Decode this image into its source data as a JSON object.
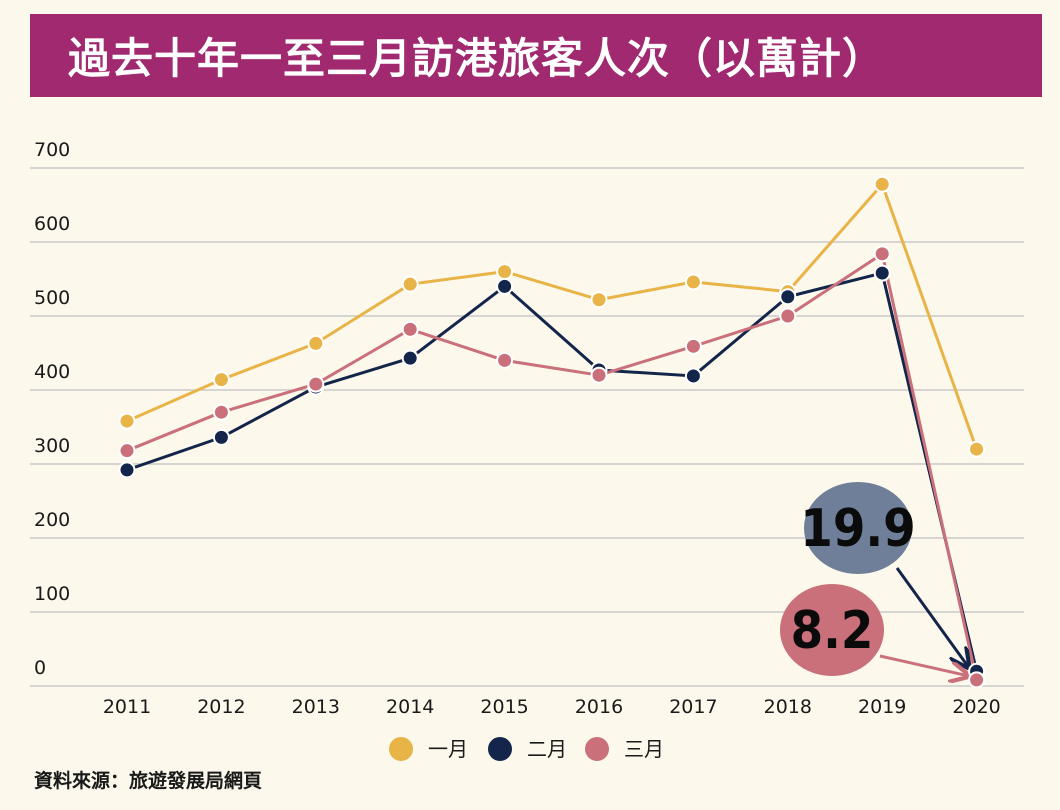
{
  "header": {
    "title": "過去十年一至三月訪港旅客人次（以萬計）"
  },
  "source": {
    "text": "資料來源：旅遊發展局網頁"
  },
  "callouts": [
    {
      "label": "19.9",
      "series_index": 1,
      "color": "#6f7f99"
    },
    {
      "label": "8.2",
      "series_index": 2,
      "color": "#c9707b"
    }
  ],
  "chart_data": {
    "type": "line",
    "title": "過去十年一至三月訪港旅客人次（以萬計）",
    "xlabel": "",
    "ylabel": "",
    "x": [
      "2011",
      "2012",
      "2013",
      "2014",
      "2015",
      "2016",
      "2017",
      "2018",
      "2019",
      "2020"
    ],
    "ylim": [
      0,
      700
    ],
    "yticks": [
      0,
      100,
      200,
      300,
      400,
      500,
      600,
      700
    ],
    "grid": true,
    "legend_position": "bottom",
    "series": [
      {
        "name": "一月",
        "color": "#e9b447",
        "values": [
          358,
          414,
          463,
          543,
          560,
          522,
          546,
          533,
          678,
          320
        ]
      },
      {
        "name": "二月",
        "color": "#13254a",
        "values": [
          292,
          336,
          404,
          443,
          540,
          427,
          419,
          526,
          558,
          19.9
        ]
      },
      {
        "name": "三月",
        "color": "#c9707b",
        "values": [
          318,
          370,
          408,
          482,
          440,
          420,
          459,
          500,
          584,
          8.2
        ]
      }
    ]
  }
}
